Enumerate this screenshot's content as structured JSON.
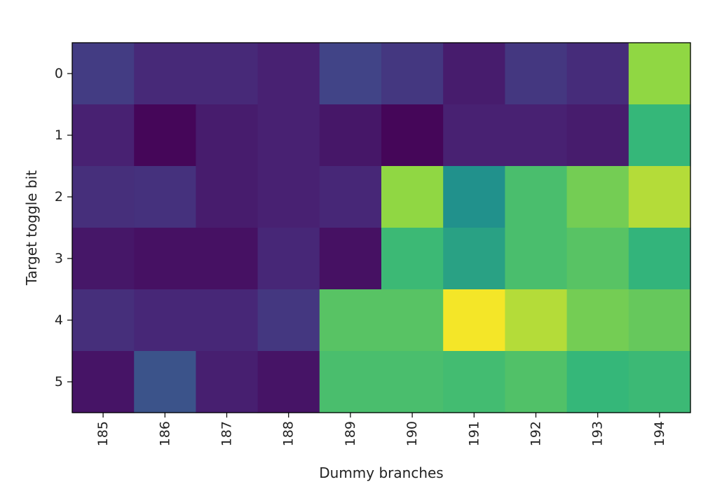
{
  "chart_data": {
    "type": "heatmap",
    "title": "",
    "xlabel": "Dummy branches",
    "ylabel": "Target toggle bit",
    "x_categories": [
      "185",
      "186",
      "187",
      "188",
      "189",
      "190",
      "191",
      "192",
      "193",
      "194"
    ],
    "y_categories": [
      "0",
      "1",
      "2",
      "3",
      "4",
      "5"
    ],
    "values": [
      [
        0.22,
        0.15,
        0.15,
        0.12,
        0.25,
        0.2,
        0.1,
        0.2,
        0.16,
        0.88
      ],
      [
        0.12,
        0.02,
        0.1,
        0.12,
        0.08,
        0.02,
        0.12,
        0.12,
        0.1,
        0.75
      ],
      [
        0.17,
        0.18,
        0.1,
        0.12,
        0.14,
        0.88,
        0.63,
        0.78,
        0.84,
        0.92
      ],
      [
        0.08,
        0.06,
        0.06,
        0.14,
        0.06,
        0.76,
        0.68,
        0.78,
        0.8,
        0.74
      ],
      [
        0.17,
        0.14,
        0.14,
        0.2,
        0.8,
        0.8,
        0.99,
        0.92,
        0.84,
        0.82
      ],
      [
        0.07,
        0.32,
        0.11,
        0.07,
        0.78,
        0.78,
        0.77,
        0.79,
        0.75,
        0.76
      ]
    ],
    "colormap": "viridis",
    "colorbar": false,
    "grid": false,
    "x_tick_rotation": "vertical"
  }
}
